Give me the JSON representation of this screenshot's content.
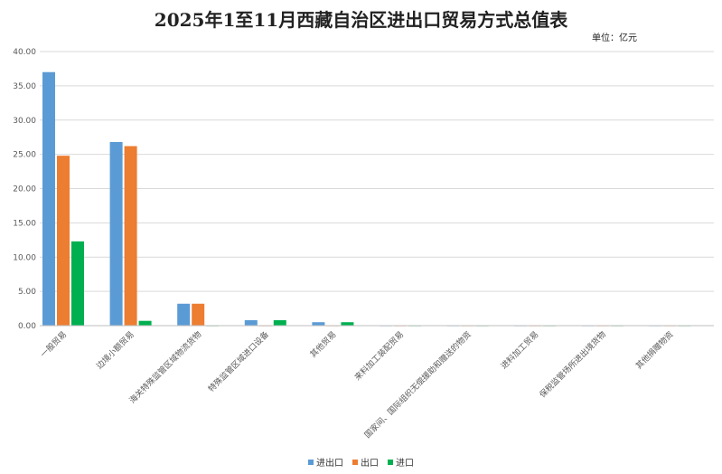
{
  "chart_data": {
    "type": "bar",
    "title": "2025年1至11月西藏自治区进出口贸易方式总值表",
    "unit_label": "单位：亿元",
    "categories": [
      "一般贸易",
      "边境小额贸易",
      "海关特殊监管区域物流货物",
      "特殊监管区域进口设备",
      "其他贸易",
      "来料加工装配贸易",
      "国家间、国际组织无偿援助和赠送的物资",
      "进料加工贸易",
      "保税监管场所进出境货物",
      "其他捐赠物资"
    ],
    "series": [
      {
        "name": "进出口",
        "color": "#5B9BD5",
        "values": [
          37.0,
          26.8,
          3.2,
          0.8,
          0.5,
          0.05,
          0.05,
          0.05,
          0.05,
          0.05
        ]
      },
      {
        "name": "出口",
        "color": "#ED7D31",
        "values": [
          24.8,
          26.2,
          3.2,
          0.05,
          0.05,
          0.05,
          0.05,
          0.05,
          0.05,
          0.05
        ]
      },
      {
        "name": "进口",
        "color": "#00B050",
        "values": [
          12.3,
          0.7,
          0.05,
          0.8,
          0.5,
          0.05,
          0.05,
          0.05,
          0.05,
          0.05
        ]
      }
    ],
    "yticks": [
      "0.00",
      "5.00",
      "10.00",
      "15.00",
      "20.00",
      "25.00",
      "30.00",
      "35.00",
      "40.00"
    ],
    "ylim": [
      0,
      40
    ],
    "grid": true,
    "legend_position": "bottom"
  }
}
